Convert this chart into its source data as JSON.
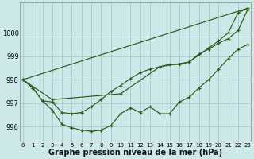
{
  "background_color": "#cce8e8",
  "grid_color": "#aacece",
  "line_color": "#2d5a1e",
  "xlabel": "Graphe pression niveau de la mer (hPa)",
  "xlabel_fontsize": 7.0,
  "ylim": [
    995.35,
    1001.3
  ],
  "xlim": [
    -0.3,
    23.3
  ],
  "ytick_vals": [
    996,
    997,
    998,
    999,
    1000
  ],
  "xtick_vals": [
    0,
    1,
    2,
    3,
    4,
    5,
    6,
    7,
    8,
    9,
    10,
    11,
    12,
    13,
    14,
    15,
    16,
    17,
    18,
    19,
    20,
    21,
    22,
    23
  ],
  "line1_x": [
    0,
    1,
    2,
    3,
    4,
    5,
    6,
    7,
    8,
    9,
    10,
    11,
    12,
    13,
    14,
    15,
    16,
    17,
    18,
    19,
    20,
    21,
    22,
    23
  ],
  "line1_y": [
    998.0,
    997.65,
    997.1,
    996.7,
    996.1,
    995.95,
    995.85,
    995.8,
    995.85,
    996.05,
    996.55,
    996.8,
    996.6,
    996.85,
    996.55,
    996.55,
    997.05,
    997.25,
    997.65,
    998.0,
    998.45,
    998.9,
    999.3,
    999.5
  ],
  "line2_x": [
    0,
    1,
    2,
    3,
    4,
    5,
    6,
    7,
    8,
    9,
    10,
    11,
    12,
    13,
    14,
    15,
    16,
    17,
    18,
    19,
    20,
    21,
    22,
    23
  ],
  "line2_y": [
    998.0,
    997.65,
    997.1,
    997.05,
    996.6,
    996.55,
    996.6,
    996.85,
    997.15,
    997.5,
    997.75,
    998.05,
    998.3,
    998.45,
    998.55,
    998.65,
    998.65,
    998.75,
    999.1,
    999.3,
    999.55,
    999.75,
    1000.1,
    1001.0
  ],
  "line3_x": [
    0,
    3,
    10,
    14,
    17,
    19,
    20,
    21,
    22,
    23
  ],
  "line3_y": [
    998.0,
    997.15,
    997.4,
    998.55,
    998.75,
    999.35,
    999.65,
    1000.0,
    1000.85,
    1001.05
  ],
  "line4_x": [
    0,
    23
  ],
  "line4_y": [
    998.0,
    1001.05
  ]
}
